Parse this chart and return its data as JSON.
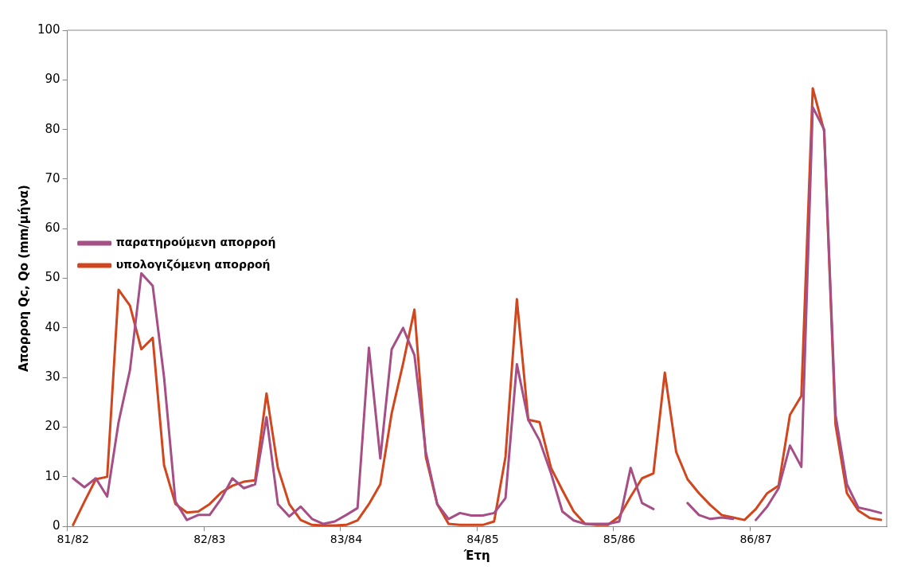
{
  "chart_data": {
    "type": "line",
    "xlabel": "Έτη",
    "ylabel": "Απορροη Qc, Qo (mm/μήνα)",
    "categories": [
      "81/82",
      null,
      null,
      null,
      null,
      null,
      null,
      null,
      null,
      null,
      null,
      null,
      "82/83",
      null,
      null,
      null,
      null,
      null,
      null,
      null,
      null,
      null,
      null,
      null,
      "83/84",
      null,
      null,
      null,
      null,
      null,
      null,
      null,
      null,
      null,
      null,
      null,
      "84/85",
      null,
      null,
      null,
      null,
      null,
      null,
      null,
      null,
      null,
      null,
      null,
      "85/86",
      null,
      null,
      null,
      null,
      null,
      null,
      null,
      null,
      null,
      null,
      null,
      "86/87",
      null,
      null,
      null,
      null,
      null,
      null,
      null,
      null,
      null,
      null,
      null
    ],
    "series": [
      {
        "name": "παρατηρούμενη απορροή",
        "color": "#a64f86",
        "values": [
          9.7,
          7.9,
          9.7,
          6,
          21,
          31.5,
          51,
          48.5,
          30,
          5,
          1.3,
          2.3,
          2.3,
          5.5,
          9.7,
          7.7,
          8.5,
          22,
          4.5,
          2,
          4,
          1.5,
          0.5,
          1,
          2.3,
          3.7,
          36,
          13.7,
          35.7,
          40,
          34.5,
          15,
          4.5,
          1.5,
          2.7,
          2.2,
          2.2,
          2.7,
          5.7,
          32.7,
          21.5,
          17.3,
          10.7,
          3,
          1.2,
          0.5,
          0.5,
          0.5,
          1,
          11.8,
          4.7,
          3.5,
          null,
          null,
          4.7,
          2.3,
          1.5,
          1.8,
          1.5,
          null,
          1.3,
          4,
          7.7,
          16.3,
          12,
          84.5,
          80,
          22.5,
          8.5,
          3.8,
          3.3,
          2.7
        ]
      },
      {
        "name": "υπολογιζόμενη απορροή",
        "color": "#d2461e",
        "values": [
          0.3,
          5,
          9.5,
          10,
          47.7,
          44.5,
          35.7,
          38,
          12.3,
          4.5,
          2.8,
          3,
          4.5,
          6.8,
          8.2,
          9,
          9.3,
          26.8,
          11.8,
          4.5,
          1.3,
          0.3,
          0.2,
          0.2,
          0.3,
          1.2,
          4.5,
          8.5,
          22.8,
          32.8,
          43.7,
          14,
          4.5,
          0.5,
          0.3,
          0.3,
          0.3,
          1,
          14,
          45.8,
          21.5,
          21,
          11.8,
          7.3,
          3,
          0.5,
          0.3,
          0.3,
          2,
          6,
          9.7,
          10.7,
          31,
          15,
          9.5,
          6.7,
          4.3,
          2.3,
          1.8,
          1.3,
          3.5,
          6.7,
          8.2,
          22.5,
          26.3,
          88.3,
          79.7,
          20.5,
          6.7,
          3.2,
          1.7,
          1.3
        ]
      }
    ],
    "ylim": [
      0,
      100
    ],
    "yticks": [
      0,
      10,
      20,
      30,
      40,
      50,
      60,
      70,
      80,
      90,
      100
    ],
    "grid": false,
    "legend": "top",
    "marker": "none",
    "line_style": "solid"
  }
}
